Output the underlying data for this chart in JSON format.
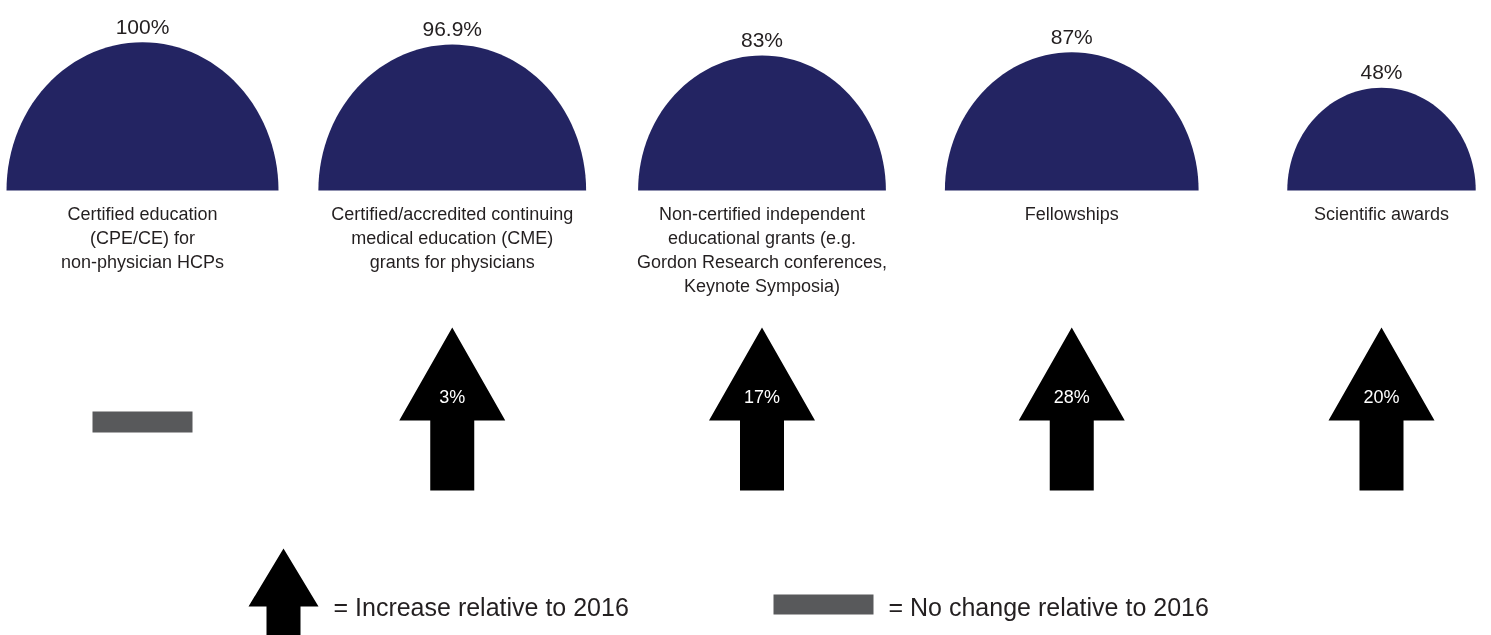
{
  "chart_data": {
    "type": "other",
    "categories": [
      "Certified education\n(CPE/CE) for\nnon-physician HCPs",
      "Certified/accredited continuing\nmedical education (CME)\ngrants for physicians",
      "Non-certified independent\neducational grants (e.g.\nGordon Research conferences,\nKeynote Symposia)",
      "Fellowships",
      "Scientific awards"
    ],
    "series": [
      {
        "color": "#232462",
        "values": [
          100,
          96.9,
          83,
          87,
          48
        ],
        "value_labels": [
          "100%",
          "96.9%",
          "83%",
          "87%",
          "48%"
        ]
      },
      {
        "colors": [
          "#58595b",
          "#000000",
          "#000000",
          "#000000",
          "#000000"
        ],
        "values": [
          null,
          3,
          17,
          28,
          20
        ],
        "value_labels": [
          null,
          "3%",
          "17%",
          "28%",
          "20%"
        ]
      }
    ],
    "annotations": [
      "= Increase relative to 2016",
      "= No change relative to 2016"
    ]
  }
}
